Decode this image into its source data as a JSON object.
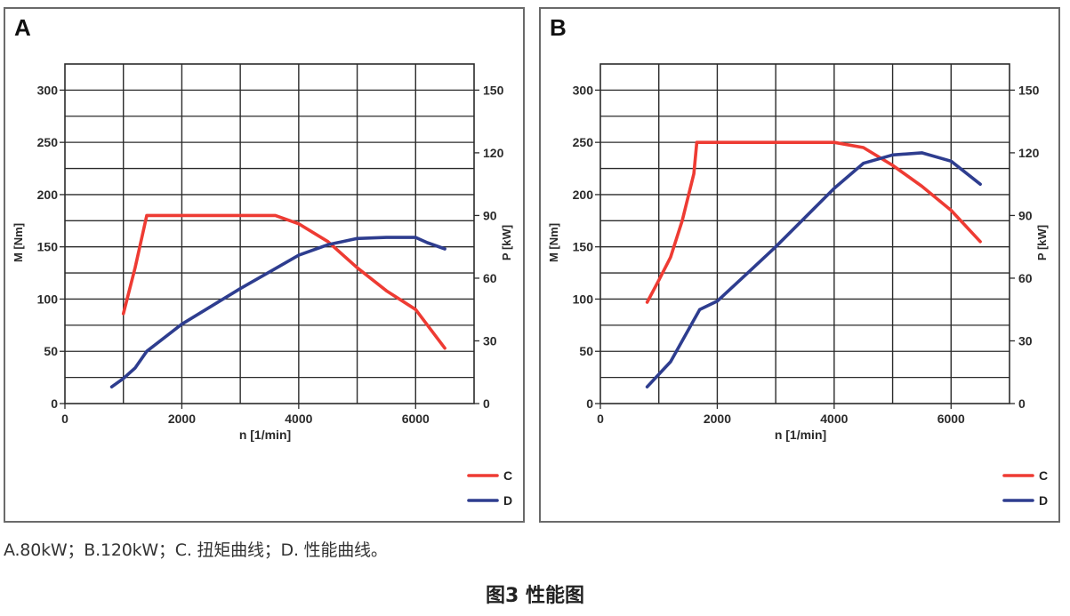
{
  "caption": "A.80kW；B.120kW；C. 扭矩曲线；D. 性能曲线。",
  "figure_title": "图3 性能图",
  "colors": {
    "torque": "#ee3b33",
    "power": "#2e3d8f",
    "grid": "#2b2b2b",
    "axis_text": "#2b2b2b"
  },
  "chart_data": [
    {
      "type": "line",
      "panel_label": "A",
      "xlabel": "n [1/min]",
      "ylabel_left": "M [Nm]",
      "ylabel_right": "P [kW]",
      "xlim": [
        0,
        7000
      ],
      "ylim_left": [
        0,
        325
      ],
      "ylim_right": [
        0,
        162.5
      ],
      "x_ticks": [
        0,
        2000,
        4000,
        6000
      ],
      "y_ticks_left": [
        0,
        50,
        100,
        150,
        200,
        250,
        300
      ],
      "y_ticks_right": [
        0,
        30,
        60,
        90,
        120,
        150
      ],
      "grid": true,
      "legend_position": "bottom-right",
      "series": [
        {
          "name": "C",
          "axis": "left",
          "color": "#ee3b33",
          "x": [
            1000,
            1200,
            1400,
            2000,
            3000,
            3600,
            4000,
            4500,
            5000,
            5500,
            6000,
            6500
          ],
          "y": [
            86,
            130,
            180,
            180,
            180,
            180,
            172,
            155,
            130,
            108,
            90,
            53
          ]
        },
        {
          "name": "D",
          "axis": "right",
          "color": "#2e3d8f",
          "x": [
            800,
            1000,
            1200,
            1400,
            2000,
            3000,
            3500,
            4000,
            4500,
            5000,
            5500,
            6000,
            6200,
            6500
          ],
          "y": [
            8,
            12,
            17,
            25,
            38,
            55,
            63,
            71,
            76,
            79,
            79.5,
            79.5,
            77,
            74
          ]
        }
      ]
    },
    {
      "type": "line",
      "panel_label": "B",
      "xlabel": "n [1/min]",
      "ylabel_left": "M [Nm]",
      "ylabel_right": "P [kW]",
      "xlim": [
        0,
        7000
      ],
      "ylim_left": [
        0,
        325
      ],
      "ylim_right": [
        0,
        162.5
      ],
      "x_ticks": [
        0,
        2000,
        4000,
        6000
      ],
      "y_ticks_left": [
        0,
        50,
        100,
        150,
        200,
        250,
        300
      ],
      "y_ticks_right": [
        0,
        30,
        60,
        90,
        120,
        150
      ],
      "grid": true,
      "legend_position": "bottom-right",
      "series": [
        {
          "name": "C",
          "axis": "left",
          "color": "#ee3b33",
          "x": [
            800,
            1000,
            1200,
            1400,
            1600,
            1650,
            2000,
            3000,
            4000,
            4500,
            5000,
            5500,
            6000,
            6500
          ],
          "y": [
            97,
            118,
            140,
            175,
            220,
            250,
            250,
            250,
            250,
            245,
            228,
            208,
            185,
            155
          ]
        },
        {
          "name": "D",
          "axis": "right",
          "color": "#2e3d8f",
          "x": [
            800,
            1000,
            1200,
            1400,
            1600,
            1700,
            2000,
            2500,
            3000,
            3500,
            4000,
            4500,
            5000,
            5500,
            6000,
            6500
          ],
          "y": [
            8,
            14,
            20,
            30,
            40,
            45,
            49,
            62,
            75,
            89,
            103,
            115,
            119,
            120,
            116,
            105
          ]
        }
      ]
    }
  ]
}
